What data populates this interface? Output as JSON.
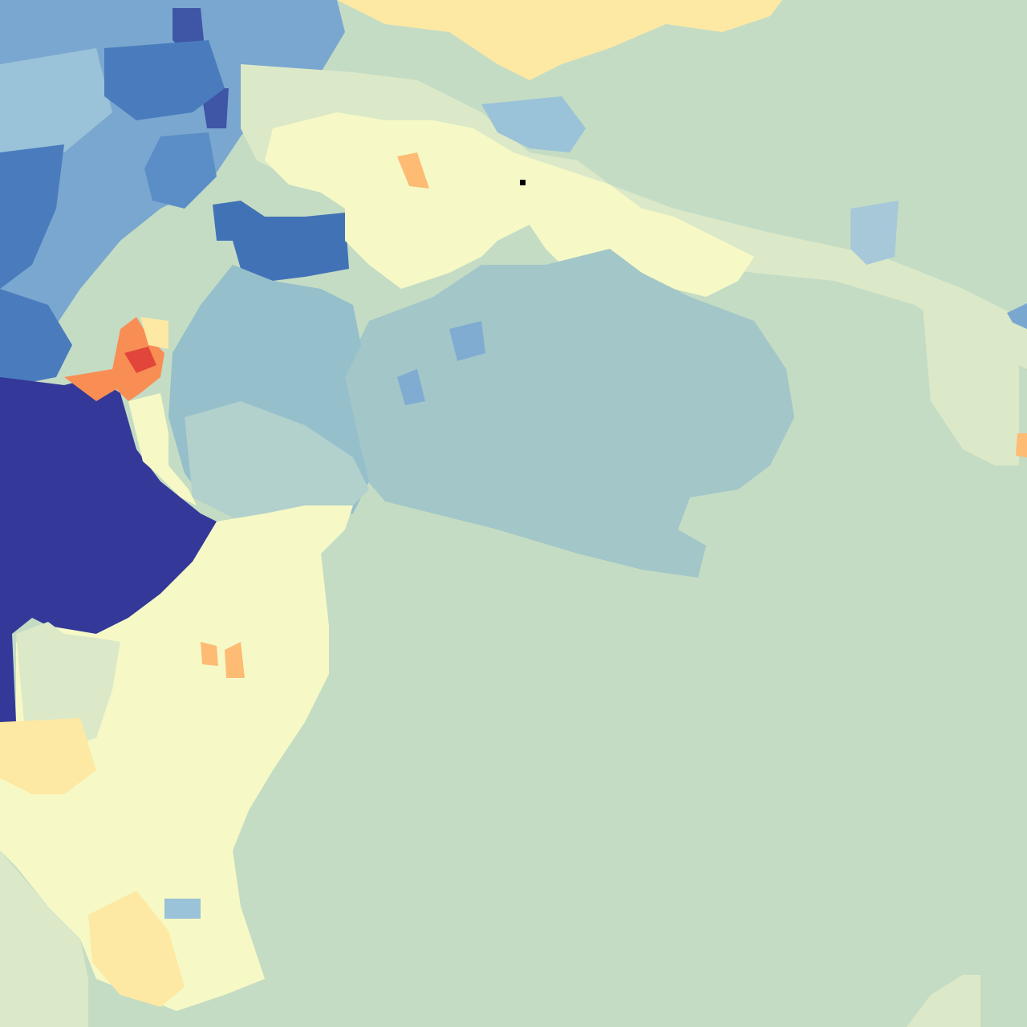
{
  "map": {
    "legend": [],
    "palette": {
      "water": "#c5dcc4",
      "lagoon": "#a3c6c8",
      "bay": "#95bfcb",
      "deep": "#343898",
      "blue_dark": "#3f56a6",
      "blue_mid": "#4a7cbd",
      "blue_light": "#7aa7d0",
      "blue_pale": "#9ac2d8",
      "teal_pale": "#b7d4d4",
      "green_pale": "#d8e8c8",
      "yellow_pale": "#f6f9c6",
      "yellow": "#fde9a3",
      "cream": "#fef0b6",
      "orange": "#fdbb74",
      "orange_dark": "#f88e54",
      "red": "#e2453a"
    },
    "marker": {
      "shape": "square",
      "color": "#000000"
    }
  }
}
